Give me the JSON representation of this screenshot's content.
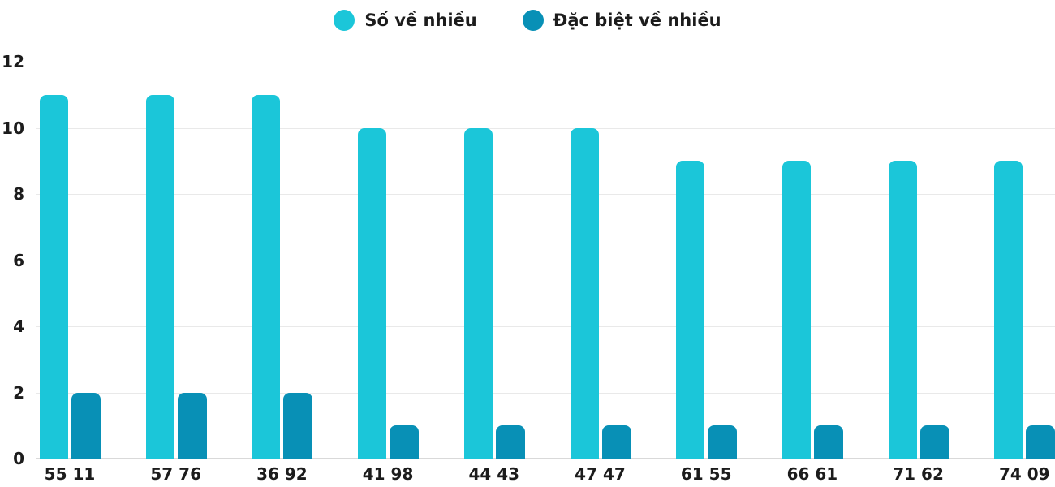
{
  "chart_data": {
    "type": "bar",
    "categories": [
      "55 11",
      "57 76",
      "36 92",
      "41 98",
      "44 43",
      "47 47",
      "61 55",
      "66 61",
      "71 62",
      "74 09"
    ],
    "series": [
      {
        "name": "Số về nhiều",
        "color": "#1bc6d9",
        "values": [
          11,
          11,
          11,
          10,
          10,
          10,
          9,
          9,
          9,
          9
        ]
      },
      {
        "name": "Đặc biệt về nhiều",
        "color": "#0890b6",
        "values": [
          2,
          2,
          2,
          1,
          1,
          1,
          1,
          1,
          1,
          1
        ]
      }
    ],
    "yticks": [
      0,
      2,
      4,
      6,
      8,
      10,
      12
    ],
    "ylim": [
      0,
      12
    ],
    "title": "",
    "xlabel": "",
    "ylabel": "",
    "grid": "horizontal",
    "legend_position": "top"
  },
  "colors": {
    "background": "#ffffff",
    "gridline": "#e9e9e9",
    "baseline": "#d9d9d9",
    "label_text": "#1c1c1c"
  }
}
